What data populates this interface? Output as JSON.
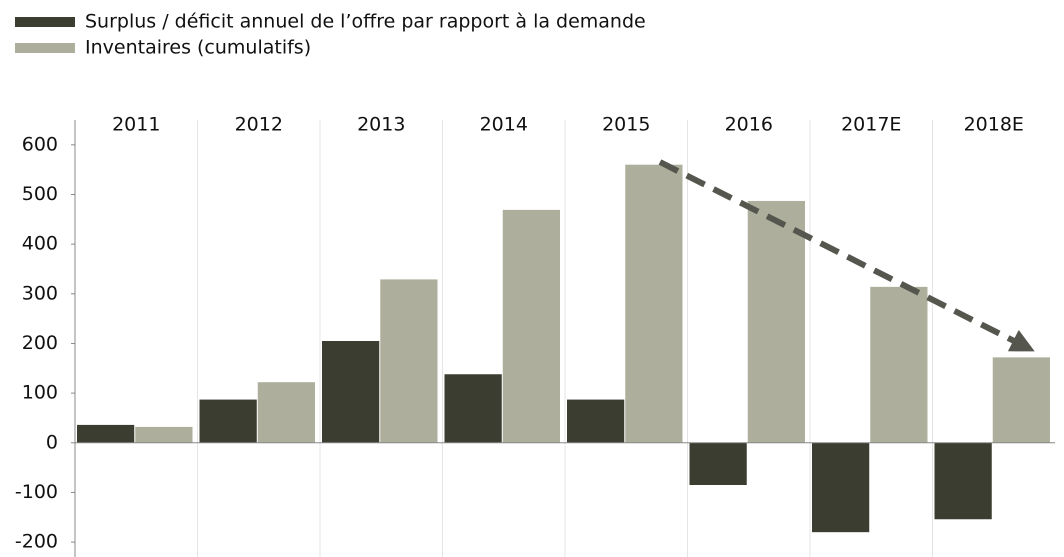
{
  "chart_data": {
    "type": "bar",
    "categories": [
      "2011",
      "2012",
      "2013",
      "2014",
      "2015",
      "2016",
      "2017E",
      "2018E"
    ],
    "series": [
      {
        "name": "Surplus / déficit annuel de l’offre par rapport à la demande",
        "color": "#3b3d30",
        "values": [
          36,
          87,
          205,
          138,
          87,
          -85,
          -180,
          -154
        ]
      },
      {
        "name": "Inventaires (cumulatifs)",
        "color": "#adaf9c",
        "values": [
          32,
          122,
          329,
          469,
          560,
          487,
          314,
          172
        ]
      }
    ],
    "ylim": [
      -230,
      650
    ],
    "yticks": [
      -200,
      -100,
      0,
      100,
      200,
      300,
      400,
      500,
      600
    ],
    "grid": true
  }
}
